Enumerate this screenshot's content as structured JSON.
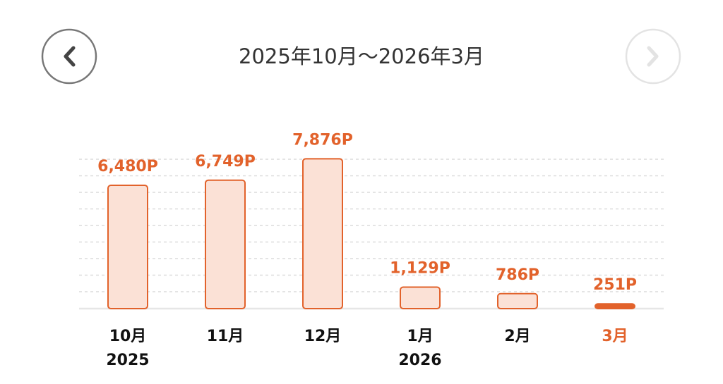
{
  "header": {
    "title": "2025年10月〜2026年3月"
  },
  "chart_data": {
    "type": "bar",
    "categories": [
      "10月",
      "11月",
      "12月",
      "1月",
      "2月",
      "3月"
    ],
    "category_years": [
      "2025",
      null,
      null,
      "2026",
      null,
      null
    ],
    "values": [
      6480,
      6749,
      7876,
      1129,
      786,
      251
    ],
    "value_labels": [
      "6,480P",
      "6,749P",
      "7,876P",
      "1,129P",
      "786P",
      "251P"
    ],
    "colors": [
      "#fbe1d6",
      "#fbe1d6",
      "#fbe1d6",
      "#fbe1d6",
      "#fbe1d6",
      "#e2622b"
    ],
    "label_colors": [
      "#111111",
      "#111111",
      "#111111",
      "#111111",
      "#111111",
      "#e2622b"
    ],
    "stroke": "#e2622b",
    "ylim": [
      0,
      8000
    ],
    "grid": true
  }
}
